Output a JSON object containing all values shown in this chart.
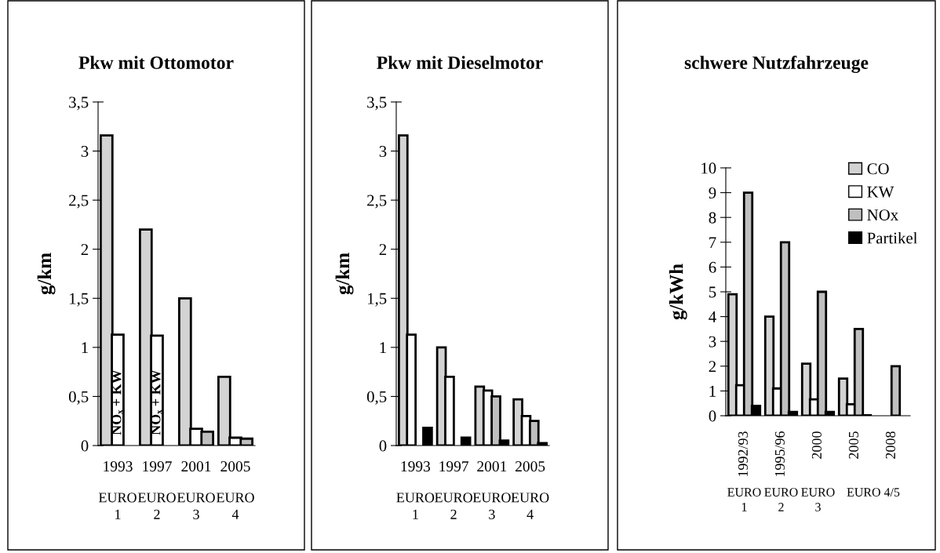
{
  "chart_data": [
    {
      "type": "bar",
      "title": "Pkw mit Ottomotor",
      "ylabel": "g/km",
      "categories": [
        "1993",
        "1997",
        "2001",
        "2005"
      ],
      "series": [
        {
          "color": "#d3d3d3",
          "values": [
            3.16,
            2.2,
            1.5,
            0.7
          ]
        },
        {
          "color": "#ffffff",
          "values": [
            1.13,
            1.12,
            0.17,
            0.08
          ]
        },
        {
          "color": "#bfbfbf",
          "values": [
            null,
            null,
            0.14,
            0.07
          ]
        }
      ],
      "ylim": [
        0,
        3.5
      ],
      "yticks": [
        0,
        {
          "value": 0.5,
          "label": "0,5"
        },
        1,
        {
          "value": 1.5,
          "label": "1,5"
        },
        2,
        {
          "value": 2.5,
          "label": "2,5"
        },
        3,
        {
          "value": 3.5,
          "label": "3,5"
        }
      ],
      "annotations": [
        "NOₓ + KW",
        "NOₓ + KW",
        "EURO 1",
        "EURO 2",
        "EURO 3",
        "EURO 4"
      ]
    },
    {
      "type": "bar",
      "title": "Pkw mit Dieselmotor",
      "ylabel": "g/km",
      "categories": [
        "1993",
        "1997",
        "2001",
        "2005"
      ],
      "series": [
        {
          "color": "#d3d3d3",
          "values": [
            3.16,
            1.0,
            0.6,
            0.47
          ]
        },
        {
          "color": "#ffffff",
          "values": [
            1.13,
            0.7,
            0.56,
            0.3
          ]
        },
        {
          "color": "#bfbfbf",
          "values": [
            null,
            null,
            0.5,
            0.25
          ]
        },
        {
          "color": "#000000",
          "values": [
            0.18,
            0.08,
            0.05,
            0.025
          ]
        }
      ],
      "ylim": [
        0,
        3.5
      ],
      "yticks": [
        0,
        {
          "value": 0.5,
          "label": "0,5"
        },
        1,
        {
          "value": 1.5,
          "label": "1,5"
        },
        2,
        {
          "value": 2.5,
          "label": "2,5"
        },
        3,
        {
          "value": 3.5,
          "label": "3,5"
        }
      ],
      "annotations": [
        "EURO 1",
        "EURO 2",
        "EURO 3",
        "EURO 4"
      ]
    },
    {
      "type": "bar",
      "title": "schwere Nutzfahrzeuge",
      "ylabel": "g/kWh",
      "categories": [
        "1992/93",
        "1995/96",
        "2000",
        "2005",
        "2008"
      ],
      "series": [
        {
          "name": "CO",
          "color": "#d3d3d3",
          "values": [
            4.9,
            4.0,
            2.1,
            1.5,
            null
          ]
        },
        {
          "name": "KW",
          "color": "#ffffff",
          "values": [
            1.23,
            1.1,
            0.66,
            0.46,
            null
          ]
        },
        {
          "name": "NOx",
          "color": "#bfbfbf",
          "values": [
            9,
            7,
            5,
            3.5,
            2
          ]
        },
        {
          "name": "Partikel",
          "color": "#000000",
          "values": [
            0.4,
            0.15,
            0.15,
            0.02,
            null
          ]
        }
      ],
      "ylim": [
        0,
        10
      ],
      "yticks": [
        0,
        1,
        2,
        3,
        4,
        5,
        6,
        7,
        8,
        9,
        10
      ],
      "legend": "top right",
      "annotations": [
        "EURO 1",
        "EURO 2",
        "EURO 3",
        "EURO 4/5"
      ]
    }
  ]
}
